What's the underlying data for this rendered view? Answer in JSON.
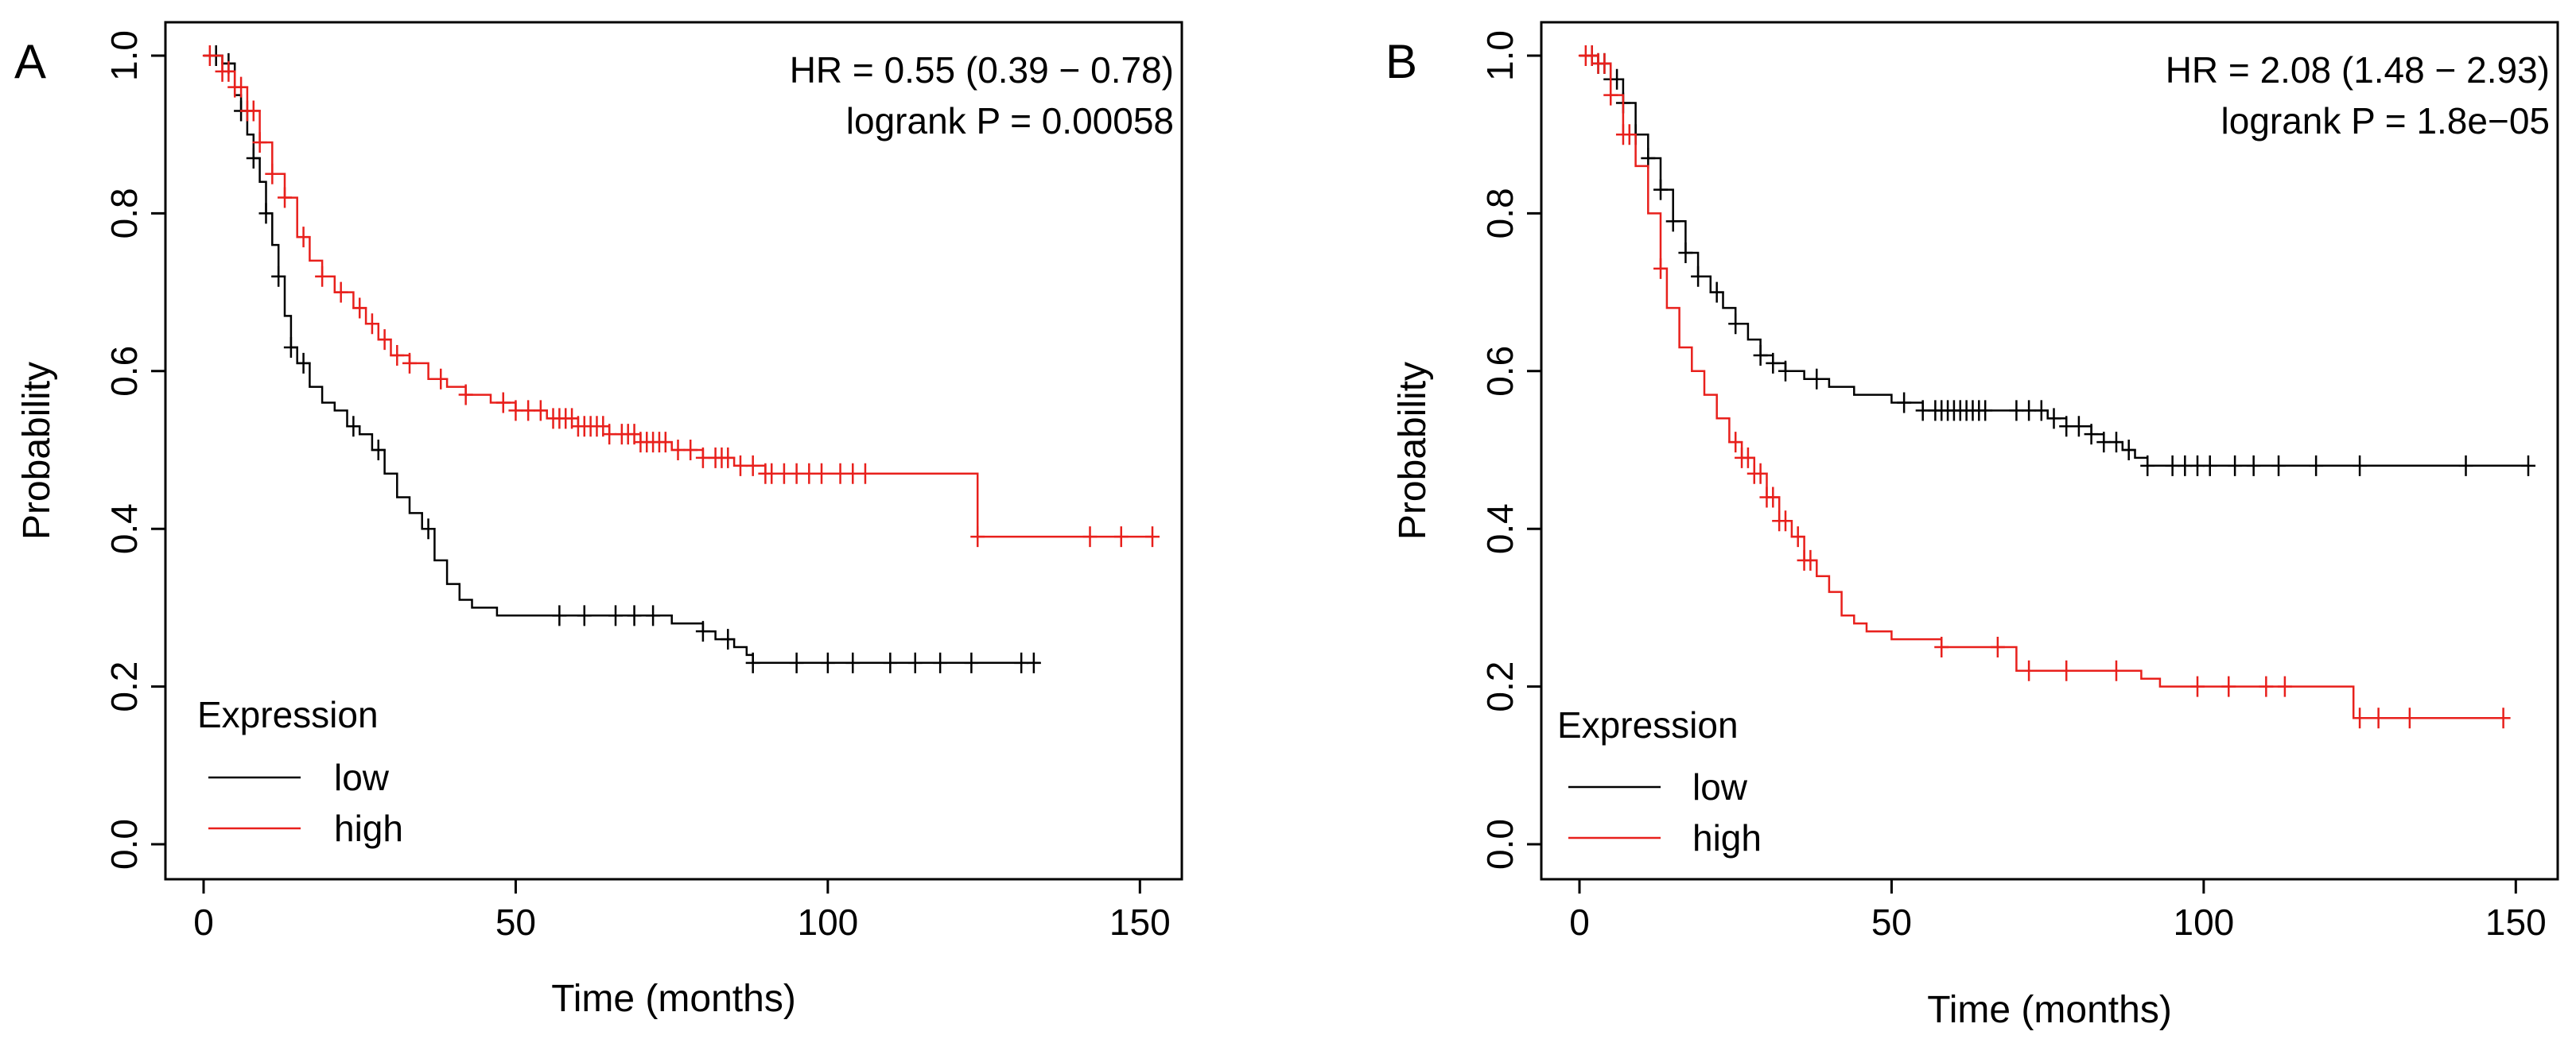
{
  "colors": {
    "low": "#000000",
    "high": "#e8201c",
    "axis": "#000000",
    "background": "#ffffff"
  },
  "chart_data": [
    {
      "type": "line",
      "panel": "A",
      "xlabel": "Time (months)",
      "ylabel": "Probability",
      "xlim": [
        0,
        152
      ],
      "ylim": [
        0,
        1
      ],
      "xticks": [
        "0",
        "50",
        "100",
        "150"
      ],
      "yticks": [
        "0.0",
        "0.2",
        "0.4",
        "0.6",
        "0.8",
        "1.0"
      ],
      "stats": [
        "HR = 0.55 (0.39 − 0.78)",
        "logrank P = 0.00058"
      ],
      "legend": {
        "title": "Expression",
        "position": "bottom-left"
      },
      "grid": false,
      "series": [
        {
          "name": "low",
          "color": "#000000",
          "points": [
            [
              0,
              1.0
            ],
            [
              3,
              0.99
            ],
            [
              5,
              0.95
            ],
            [
              6,
              0.93
            ],
            [
              7,
              0.9
            ],
            [
              8,
              0.87
            ],
            [
              9,
              0.84
            ],
            [
              10,
              0.8
            ],
            [
              11,
              0.76
            ],
            [
              12,
              0.72
            ],
            [
              13,
              0.67
            ],
            [
              14,
              0.63
            ],
            [
              15,
              0.61
            ],
            [
              17,
              0.58
            ],
            [
              19,
              0.56
            ],
            [
              21,
              0.55
            ],
            [
              23,
              0.53
            ],
            [
              25,
              0.52
            ],
            [
              27,
              0.5
            ],
            [
              29,
              0.47
            ],
            [
              31,
              0.44
            ],
            [
              33,
              0.42
            ],
            [
              35,
              0.4
            ],
            [
              37,
              0.36
            ],
            [
              39,
              0.33
            ],
            [
              41,
              0.31
            ],
            [
              43,
              0.3
            ],
            [
              47,
              0.29
            ],
            [
              60,
              0.29
            ],
            [
              75,
              0.28
            ],
            [
              80,
              0.27
            ],
            [
              82,
              0.26
            ],
            [
              85,
              0.25
            ],
            [
              87,
              0.24
            ],
            [
              88,
              0.23
            ],
            [
              134,
              0.23
            ]
          ],
          "censored_x": [
            2,
            4,
            6,
            8,
            10,
            12,
            14,
            16,
            24,
            28,
            36,
            57,
            61,
            66,
            69,
            72,
            80,
            84,
            88,
            95,
            100,
            104,
            110,
            114,
            118,
            123,
            131,
            133
          ]
        },
        {
          "name": "high",
          "color": "#e8201c",
          "points": [
            [
              0,
              1.0
            ],
            [
              3,
              0.98
            ],
            [
              5,
              0.96
            ],
            [
              7,
              0.93
            ],
            [
              9,
              0.89
            ],
            [
              11,
              0.85
            ],
            [
              13,
              0.82
            ],
            [
              15,
              0.77
            ],
            [
              17,
              0.74
            ],
            [
              19,
              0.72
            ],
            [
              21,
              0.7
            ],
            [
              24,
              0.68
            ],
            [
              26,
              0.66
            ],
            [
              28,
              0.64
            ],
            [
              30,
              0.62
            ],
            [
              33,
              0.61
            ],
            [
              36,
              0.59
            ],
            [
              39,
              0.58
            ],
            [
              42,
              0.57
            ],
            [
              46,
              0.56
            ],
            [
              50,
              0.55
            ],
            [
              55,
              0.54
            ],
            [
              60,
              0.53
            ],
            [
              65,
              0.52
            ],
            [
              70,
              0.51
            ],
            [
              75,
              0.5
            ],
            [
              80,
              0.49
            ],
            [
              85,
              0.48
            ],
            [
              90,
              0.47
            ],
            [
              123,
              0.47
            ],
            [
              124,
              0.39
            ],
            [
              152,
              0.39
            ]
          ],
          "censored_x": [
            1,
            3,
            4,
            5,
            6,
            7,
            8,
            9,
            11,
            13,
            16,
            19,
            22,
            25,
            27,
            29,
            31,
            33,
            38,
            42,
            48,
            50,
            52,
            54,
            56,
            57,
            58,
            59,
            60,
            61,
            62,
            63,
            64,
            65,
            67,
            68,
            69,
            70,
            71,
            72,
            73,
            74,
            76,
            78,
            80,
            82,
            83,
            84,
            86,
            88,
            90,
            91,
            93,
            95,
            97,
            99,
            102,
            104,
            106,
            124,
            142,
            147,
            152
          ]
        }
      ]
    },
    {
      "type": "line",
      "panel": "B",
      "xlabel": "Time (months)",
      "ylabel": "Probability",
      "xlim": [
        0,
        152
      ],
      "ylim": [
        0,
        1
      ],
      "xticks": [
        "0",
        "50",
        "100",
        "150"
      ],
      "yticks": [
        "0.0",
        "0.2",
        "0.4",
        "0.6",
        "0.8",
        "1.0"
      ],
      "stats": [
        "HR = 2.08 (1.48 − 2.93)",
        "logrank P = 1.8e−05"
      ],
      "legend": {
        "title": "Expression",
        "position": "bottom-left"
      },
      "grid": false,
      "series": [
        {
          "name": "low",
          "color": "#000000",
          "points": [
            [
              0,
              1.0
            ],
            [
              3,
              0.99
            ],
            [
              5,
              0.97
            ],
            [
              7,
              0.94
            ],
            [
              9,
              0.9
            ],
            [
              11,
              0.87
            ],
            [
              13,
              0.83
            ],
            [
              15,
              0.79
            ],
            [
              17,
              0.75
            ],
            [
              19,
              0.72
            ],
            [
              21,
              0.7
            ],
            [
              23,
              0.68
            ],
            [
              25,
              0.66
            ],
            [
              27,
              0.64
            ],
            [
              29,
              0.62
            ],
            [
              31,
              0.61
            ],
            [
              33,
              0.6
            ],
            [
              36,
              0.59
            ],
            [
              40,
              0.58
            ],
            [
              44,
              0.57
            ],
            [
              50,
              0.56
            ],
            [
              55,
              0.55
            ],
            [
              75,
              0.54
            ],
            [
              78,
              0.53
            ],
            [
              82,
              0.52
            ],
            [
              84,
              0.51
            ],
            [
              87,
              0.5
            ],
            [
              89,
              0.49
            ],
            [
              91,
              0.48
            ],
            [
              152,
              0.48
            ]
          ],
          "censored_x": [
            2,
            3,
            4,
            5,
            6,
            7,
            9,
            11,
            13,
            15,
            17,
            19,
            22,
            25,
            29,
            31,
            33,
            38,
            52,
            55,
            57,
            58,
            59,
            60,
            61,
            62,
            63,
            64,
            65,
            70,
            72,
            74,
            76,
            78,
            80,
            82,
            84,
            86,
            88,
            91,
            95,
            97,
            99,
            101,
            105,
            108,
            112,
            118,
            125,
            142,
            152
          ]
        },
        {
          "name": "high",
          "color": "#e8201c",
          "points": [
            [
              0,
              1.0
            ],
            [
              3,
              0.99
            ],
            [
              5,
              0.95
            ],
            [
              7,
              0.9
            ],
            [
              9,
              0.86
            ],
            [
              11,
              0.8
            ],
            [
              13,
              0.73
            ],
            [
              14,
              0.68
            ],
            [
              16,
              0.63
            ],
            [
              18,
              0.6
            ],
            [
              20,
              0.57
            ],
            [
              22,
              0.54
            ],
            [
              24,
              0.51
            ],
            [
              26,
              0.49
            ],
            [
              28,
              0.47
            ],
            [
              30,
              0.44
            ],
            [
              32,
              0.41
            ],
            [
              34,
              0.39
            ],
            [
              36,
              0.36
            ],
            [
              38,
              0.34
            ],
            [
              40,
              0.32
            ],
            [
              42,
              0.29
            ],
            [
              44,
              0.28
            ],
            [
              46,
              0.27
            ],
            [
              50,
              0.26
            ],
            [
              58,
              0.25
            ],
            [
              66,
              0.25
            ],
            [
              70,
              0.22
            ],
            [
              90,
              0.21
            ],
            [
              93,
              0.2
            ],
            [
              123,
              0.2
            ],
            [
              124,
              0.16
            ],
            [
              148,
              0.16
            ]
          ],
          "censored_x": [
            1,
            2,
            3,
            4,
            5,
            7,
            8,
            13,
            25,
            26,
            27,
            28,
            29,
            30,
            31,
            32,
            33,
            35,
            36,
            37,
            58,
            67,
            72,
            78,
            86,
            99,
            104,
            110,
            113,
            125,
            128,
            133,
            148
          ]
        }
      ]
    }
  ]
}
